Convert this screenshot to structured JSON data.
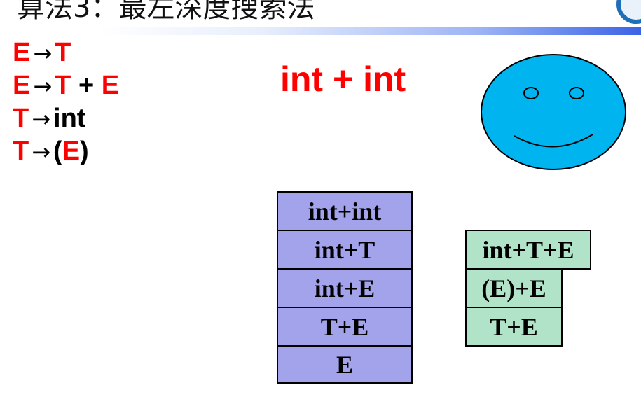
{
  "header": {
    "title": "算法3：最左深度搜索法"
  },
  "grammar": {
    "rules": [
      {
        "lhs": "E",
        "arrow": "→",
        "rhs": [
          {
            "text": "T",
            "color": "red"
          }
        ]
      },
      {
        "lhs": "E",
        "arrow": "→",
        "rhs": [
          {
            "text": "T",
            "color": "red"
          },
          {
            "text": " + ",
            "color": "black"
          },
          {
            "text": "E",
            "color": "red"
          }
        ]
      },
      {
        "lhs": "T",
        "arrow": "→",
        "rhs": [
          {
            "text": "int",
            "color": "black"
          }
        ]
      },
      {
        "lhs": "T",
        "arrow": "→",
        "rhs": [
          {
            "text": "(",
            "color": "black"
          },
          {
            "text": "E",
            "color": "red"
          },
          {
            "text": ")",
            "color": "black"
          }
        ]
      }
    ]
  },
  "input": {
    "string": "int + int"
  },
  "smiley": {
    "face_color": "#00b4f0",
    "icon": "smiley-face-icon"
  },
  "derivation_stack": {
    "color": "#a3a3eb",
    "items": [
      "int+int",
      "int+T",
      "int+E",
      "T+E",
      "E"
    ]
  },
  "alternatives_stack": {
    "color": "#b0e3c7",
    "items": [
      "int+T+E",
      "(E)+E",
      "T+E"
    ]
  },
  "colors": {
    "red": "#ff0000",
    "black": "#000000"
  }
}
